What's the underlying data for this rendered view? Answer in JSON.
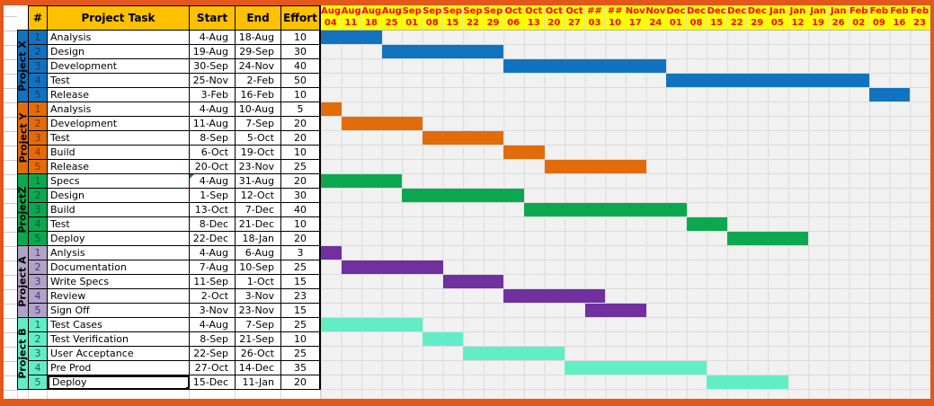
{
  "sheet": {
    "frame_color": "#E2581A",
    "table_header": {
      "bg_color": "#FFC000",
      "num": "#",
      "task": "Project Task",
      "start": "Start",
      "end": "End",
      "effort": "Effort"
    },
    "timeline": {
      "bg_color": "#FFFF00",
      "text_color": "#FF0000",
      "months": [
        "Aug",
        "Aug",
        "Aug",
        "Aug",
        "Sep",
        "Sep",
        "Sep",
        "Sep",
        "Sep",
        "Oct",
        "Oct",
        "Oct",
        "Oct",
        "##",
        "##",
        "Nov",
        "Nov",
        "Dec",
        "Dec",
        "Dec",
        "Dec",
        "Dec",
        "Jan",
        "Jan",
        "Jan",
        "Jan",
        "Feb",
        "Feb",
        "Feb",
        "Feb"
      ],
      "days": [
        "04",
        "11",
        "18",
        "25",
        "01",
        "08",
        "15",
        "22",
        "29",
        "06",
        "13",
        "20",
        "27",
        "03",
        "10",
        "17",
        "24",
        "01",
        "08",
        "15",
        "22",
        "29",
        "05",
        "12",
        "19",
        "26",
        "02",
        "09",
        "16",
        "23"
      ]
    },
    "projects": [
      {
        "label": "Project X",
        "band_color": "#1173BF",
        "bar_color": "#1173BF",
        "num_bg": "#1173BF",
        "num_text": "#17375E",
        "tasks": [
          {
            "num": "1",
            "name": "Analysis",
            "start": "4-Aug",
            "end": "18-Aug",
            "effort": "10",
            "bar_start_col": 1,
            "bar_end_col": 3
          },
          {
            "num": "2",
            "name": "Design",
            "start": "19-Aug",
            "end": "29-Sep",
            "effort": "30",
            "bar_start_col": 4,
            "bar_end_col": 9
          },
          {
            "num": "3",
            "name": "Development",
            "start": "30-Sep",
            "end": "24-Nov",
            "effort": "40",
            "bar_start_col": 10,
            "bar_end_col": 17
          },
          {
            "num": "4",
            "name": "Test",
            "start": "25-Nov",
            "end": "2-Feb",
            "effort": "50",
            "bar_start_col": 18,
            "bar_end_col": 27
          },
          {
            "num": "5",
            "name": "Release",
            "start": "3-Feb",
            "end": "16-Feb",
            "effort": "10",
            "bar_start_col": 28,
            "bar_end_col": 29
          }
        ]
      },
      {
        "label": "Project Y",
        "band_color": "#E36C0A",
        "bar_color": "#E36C0A",
        "num_bg": "#E36C0A",
        "num_text": "#7F3300",
        "tasks": [
          {
            "num": "1",
            "name": "Analysis",
            "start": "4-Aug",
            "end": "10-Aug",
            "effort": "5",
            "bar_start_col": 1,
            "bar_end_col": 1
          },
          {
            "num": "2",
            "name": "Development",
            "start": "11-Aug",
            "end": "7-Sep",
            "effort": "20",
            "bar_start_col": 2,
            "bar_end_col": 5
          },
          {
            "num": "3",
            "name": "Test",
            "start": "8-Sep",
            "end": "5-Oct",
            "effort": "20",
            "bar_start_col": 6,
            "bar_end_col": 9
          },
          {
            "num": "4",
            "name": "Build",
            "start": "6-Oct",
            "end": "19-Oct",
            "effort": "10",
            "bar_start_col": 10,
            "bar_end_col": 11
          },
          {
            "num": "5",
            "name": "Release",
            "start": "20-Oct",
            "end": "23-Nov",
            "effort": "25",
            "bar_start_col": 12,
            "bar_end_col": 16
          }
        ]
      },
      {
        "label": "ProjectZ",
        "band_color": "#0CA850",
        "bar_color": "#0CA850",
        "num_bg": "#0CA850",
        "num_text": "#0B5C2D",
        "tasks": [
          {
            "num": "1",
            "name": "Specs",
            "start": "4-Aug",
            "end": "31-Aug",
            "effort": "20",
            "bar_start_col": 1,
            "bar_end_col": 4,
            "start_marker": true
          },
          {
            "num": "2",
            "name": "Design",
            "start": "1-Sep",
            "end": "12-Oct",
            "effort": "30",
            "bar_start_col": 5,
            "bar_end_col": 10
          },
          {
            "num": "3",
            "name": "Build",
            "start": "13-Oct",
            "end": "7-Dec",
            "effort": "40",
            "bar_start_col": 11,
            "bar_end_col": 18
          },
          {
            "num": "4",
            "name": "Test",
            "start": "8-Dec",
            "end": "21-Dec",
            "effort": "10",
            "bar_start_col": 19,
            "bar_end_col": 20
          },
          {
            "num": "5",
            "name": "Deploy",
            "start": "22-Dec",
            "end": "18-Jan",
            "effort": "20",
            "bar_start_col": 21,
            "bar_end_col": 24
          }
        ]
      },
      {
        "label": "Project A",
        "band_color": "#B2A2C9",
        "bar_color": "#7030A0",
        "num_bg": "#B2A2C9",
        "num_text": "#4A3569",
        "tasks": [
          {
            "num": "1",
            "name": "Anlysis",
            "start": "4-Aug",
            "end": "6-Aug",
            "effort": "3",
            "bar_start_col": 1,
            "bar_end_col": 1
          },
          {
            "num": "2",
            "name": "Documentation",
            "start": "7-Aug",
            "end": "10-Sep",
            "effort": "25",
            "bar_start_col": 2,
            "bar_end_col": 6
          },
          {
            "num": "3",
            "name": "Write Specs",
            "start": "11-Sep",
            "end": "1-Oct",
            "effort": "15",
            "bar_start_col": 7,
            "bar_end_col": 9
          },
          {
            "num": "4",
            "name": "Review",
            "start": "2-Oct",
            "end": "3-Nov",
            "effort": "23",
            "bar_start_col": 10,
            "bar_end_col": 14
          },
          {
            "num": "5",
            "name": "Sign Off",
            "start": "3-Nov",
            "end": "23-Nov",
            "effort": "15",
            "bar_start_col": 14,
            "bar_end_col": 16
          }
        ]
      },
      {
        "label": "Project B",
        "band_color": "#63EDC7",
        "bar_color": "#63EDC7",
        "num_bg": "#63EDC7",
        "num_text": "#0F6B52",
        "tasks": [
          {
            "num": "1",
            "name": "Test Cases",
            "start": "4-Aug",
            "end": "7-Sep",
            "effort": "25",
            "bar_start_col": 1,
            "bar_end_col": 5
          },
          {
            "num": "2",
            "name": "Test Verification",
            "start": "8-Sep",
            "end": "21-Sep",
            "effort": "10",
            "bar_start_col": 6,
            "bar_end_col": 7
          },
          {
            "num": "3",
            "name": "User Acceptance",
            "start": "22-Sep",
            "end": "26-Oct",
            "effort": "25",
            "bar_start_col": 8,
            "bar_end_col": 12
          },
          {
            "num": "4",
            "name": "Pre Prod",
            "start": "27-Oct",
            "end": "14-Dec",
            "effort": "35",
            "bar_start_col": 13,
            "bar_end_col": 19
          },
          {
            "num": "5",
            "name": "Deploy",
            "start": "15-Dec",
            "end": "11-Jan",
            "effort": "20",
            "bar_start_col": 20,
            "bar_end_col": 23,
            "selected": true
          }
        ]
      }
    ]
  }
}
